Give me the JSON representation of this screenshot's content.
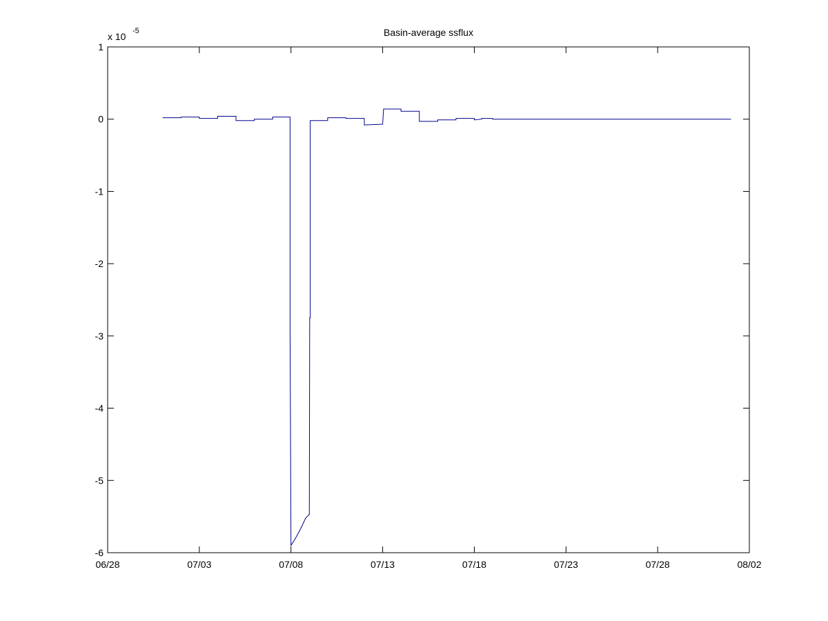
{
  "chart_data": {
    "type": "line",
    "title": "Basin-average ssflux",
    "xlabel": "",
    "ylabel": "",
    "exponent_label": {
      "base": "x 10",
      "power": "-5"
    },
    "xlim": [
      0,
      35
    ],
    "ylim": [
      -6,
      1
    ],
    "x_ticks": [
      {
        "value": 0,
        "label": "06/28"
      },
      {
        "value": 5,
        "label": "07/03"
      },
      {
        "value": 10,
        "label": "07/08"
      },
      {
        "value": 15,
        "label": "07/13"
      },
      {
        "value": 20,
        "label": "07/18"
      },
      {
        "value": 25,
        "label": "07/23"
      },
      {
        "value": 30,
        "label": "07/28"
      },
      {
        "value": 35,
        "label": "08/02"
      }
    ],
    "y_ticks": [
      {
        "value": 1,
        "label": "1"
      },
      {
        "value": 0,
        "label": "0"
      },
      {
        "value": -1,
        "label": "-1"
      },
      {
        "value": -2,
        "label": "-2"
      },
      {
        "value": -3,
        "label": "-3"
      },
      {
        "value": -4,
        "label": "-4"
      },
      {
        "value": -5,
        "label": "-5"
      },
      {
        "value": -6,
        "label": "-6"
      }
    ],
    "grid": false,
    "series": [
      {
        "name": "ssflux",
        "color": "#00008b",
        "x": [
          3.0,
          4.0,
          4.0,
          5.0,
          5.0,
          6.0,
          6.0,
          7.0,
          7.0,
          8.0,
          8.0,
          9.0,
          9.0,
          9.95,
          9.95,
          10.0,
          10.2,
          10.4,
          10.6,
          10.8,
          11.0,
          11.02,
          11.05,
          11.05,
          12.0,
          12.0,
          13.0,
          13.0,
          14.0,
          14.0,
          15.0,
          15.0,
          15.05,
          15.05,
          16.0,
          16.0,
          17.0,
          17.0,
          18.0,
          18.0,
          19.0,
          19.0,
          20.0,
          20.0,
          20.4,
          20.4,
          21.0,
          21.0,
          34.0
        ],
        "y": [
          0.02,
          0.02,
          0.03,
          0.03,
          0.01,
          0.01,
          0.04,
          0.04,
          -0.02,
          -0.02,
          0.0,
          0.0,
          0.03,
          0.03,
          -2.95,
          -5.9,
          -5.82,
          -5.73,
          -5.63,
          -5.52,
          -5.47,
          -2.75,
          -2.75,
          -0.02,
          -0.02,
          0.02,
          0.02,
          0.01,
          0.01,
          -0.08,
          -0.07,
          -0.07,
          0.14,
          0.14,
          0.14,
          0.11,
          0.11,
          -0.03,
          -0.03,
          -0.01,
          -0.01,
          0.01,
          0.01,
          -0.01,
          0.0,
          0.01,
          0.01,
          0.0,
          0.0
        ]
      }
    ]
  }
}
